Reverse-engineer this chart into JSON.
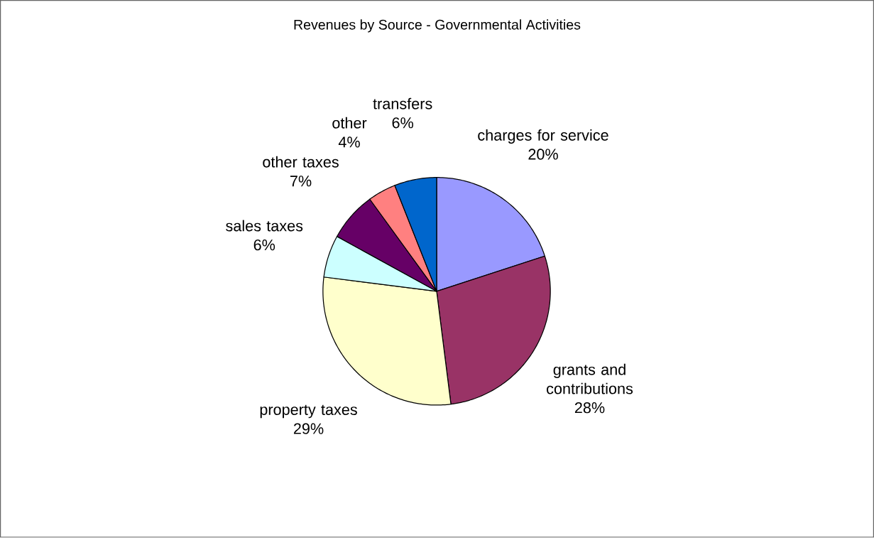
{
  "chart_data": {
    "type": "pie",
    "title": "Revenues by Source - Governmental Activities",
    "categories": [
      "charges for service",
      "grants and contributions",
      "property taxes",
      "sales taxes",
      "other taxes",
      "other",
      "transfers"
    ],
    "values": [
      20,
      28,
      29,
      6,
      7,
      4,
      6
    ],
    "value_labels": [
      "20%",
      "28%",
      "29%",
      "6%",
      "7%",
      "4%",
      "6%"
    ],
    "colors": [
      "#9999ff",
      "#993366",
      "#ffffcc",
      "#ccffff",
      "#660066",
      "#ff8080",
      "#0066cc"
    ],
    "legend": false
  }
}
